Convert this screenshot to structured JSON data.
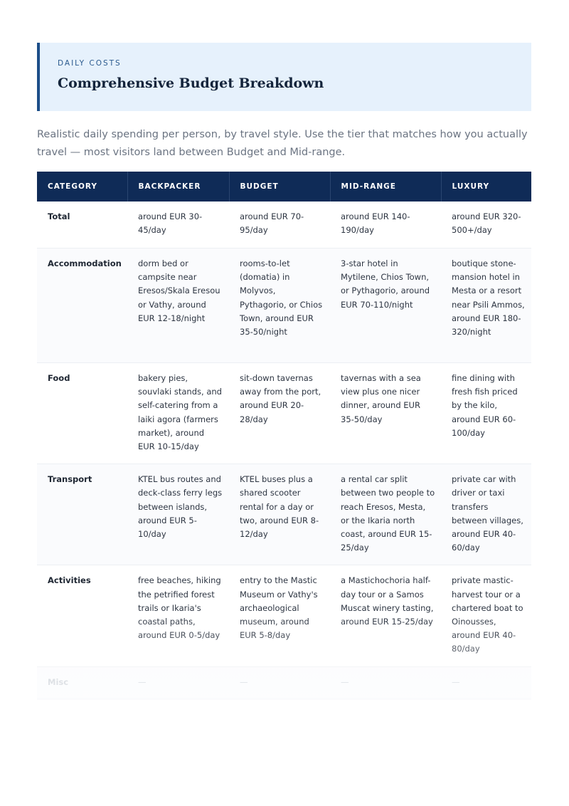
{
  "header": {
    "eyebrow": "DAILY COSTS",
    "title": "Comprehensive Budget Breakdown"
  },
  "intro": "Realistic daily spending per person, by travel style. Use the tier that matches how you actually travel — most visitors land between Budget and Mid-range.",
  "table": {
    "columns": [
      "CATEGORY",
      "BACKPACKER",
      "BUDGET",
      "MID-RANGE",
      "LUXURY"
    ],
    "rows": [
      {
        "category": "Total",
        "backpacker": "around EUR 30-45/day",
        "budget": "around EUR 70-95/day",
        "midrange": "around EUR 140-190/day",
        "luxury": "around EUR 320-500+/day"
      },
      {
        "category": "Accommodation",
        "backpacker": "dorm bed or campsite near Eresos/Skala Eresou or Vathy, around EUR 12-18/night",
        "budget": "rooms-to-let (domatia) in Molyvos, Pythagorio, or Chios Town, around EUR 35-50/night",
        "midrange": "3-star hotel in Mytilene, Chios Town, or Pythagorio, around EUR 70-110/night",
        "luxury": "boutique stone-mansion hotel in Mesta or a resort near Psili Ammos, around EUR 180-320/night"
      },
      {
        "category": "Food",
        "backpacker": "bakery pies, souvlaki stands, and self-catering from a laiki agora (farmers market), around EUR 10-15/day",
        "budget": "sit-down tavernas away from the port, around EUR 20-28/day",
        "midrange": "tavernas with a sea view plus one nicer dinner, around EUR 35-50/day",
        "luxury": "fine dining with fresh fish priced by the kilo, around EUR 60-100/day"
      },
      {
        "category": "Transport",
        "backpacker": "KTEL bus routes and deck-class ferry legs between islands, around EUR 5-10/day",
        "budget": "KTEL buses plus a shared scooter rental for a day or two, around EUR 8-12/day",
        "midrange": "a rental car split between two people to reach Eresos, Mesta, or the Ikaria north coast, around EUR 15-25/day",
        "luxury": "private car with driver or taxi transfers between villages, around EUR 40-60/day"
      },
      {
        "category": "Activities",
        "backpacker": "free beaches, hiking the petrified forest trails or Ikaria's coastal paths, around EUR 0-5/day",
        "budget": "entry to the Mastic Museum or Vathy's archaeological museum, around EUR 5-8/day",
        "midrange": "a Mastichochoria half-day tour or a Samos Muscat winery tasting, around EUR 15-25/day",
        "luxury": "private mastic-harvest tour or a chartered boat to Oinousses, around EUR 40-80/day"
      },
      {
        "category": "Misc",
        "backpacker": "—",
        "budget": "—",
        "midrange": "—",
        "luxury": "—"
      }
    ]
  },
  "colors": {
    "header_band": "#0f2b57",
    "callout_bg": "#e6f1fc",
    "callout_border": "#1c4e89",
    "eyebrow": "#2b5a8e"
  }
}
